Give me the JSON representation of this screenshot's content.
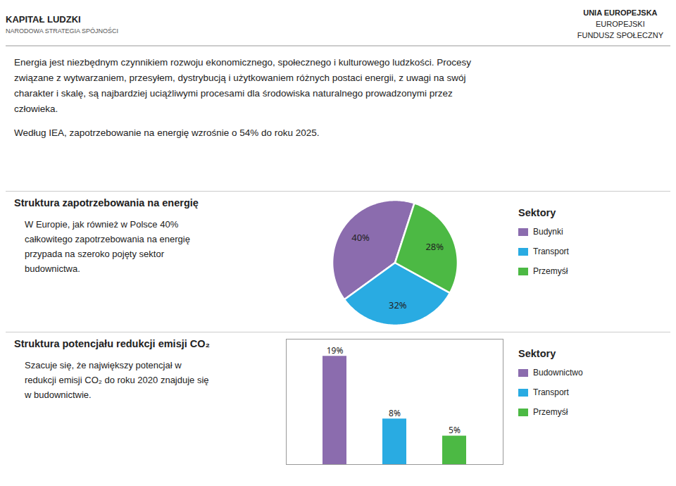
{
  "header": {
    "left": [
      "KAPITAŁ LUDZKI",
      "NARODOWA STRATEGIA SPÓJNOŚCI"
    ],
    "right": [
      "UNIA EUROPEJSKA",
      "EUROPEJSKI",
      "FUNDUSZ SPOŁECZNY"
    ]
  },
  "intro": [
    [
      "Energia jest niezbędnym czynnikiem rozwoju ekonomicznego, społecznego i kulturowego ludzkości. Procesy",
      "związane z wytwarzaniem, przesyłem, dystrybucją i użytkowaniem różnych  postaci energii, z uwagi na swój",
      "charakter i skalę, są najbardziej uciążliwymi procesami dla środowiska naturalnego prowadzonymi przez",
      "człowieka."
    ],
    [
      "Według IEA, zapotrzebowanie na energię wzrośnie o 54% do roku 2025."
    ]
  ],
  "chart_data": [
    {
      "type": "pie",
      "title": "Struktura zapotrzebowania na energię",
      "annotations": [
        "W Europie, jak również w Polsce 40%",
        "całkowitego zapotrzebowania na energię",
        "przypada na szeroko pojęty sektor",
        "budownictwa."
      ],
      "legend_title": "Sektory",
      "categories": [
        "Budynki",
        "Transport",
        "Przemyśł"
      ],
      "values": [
        40,
        32,
        28
      ],
      "value_labels": [
        "40%",
        "32%",
        "28%"
      ],
      "colors": [
        "#8B6CAE",
        "#29ABE2",
        "#4CB944"
      ],
      "data_labels": true,
      "legend": "right"
    },
    {
      "type": "bar",
      "title": "Struktura potencjału redukcji emisji CO₂",
      "annotations": [
        "Szacuje się, że największy potencjał w",
        "redukcji emisji CO₂ do roku 2020 znajduje się",
        "w budownictwie."
      ],
      "legend_title": "Sektory",
      "categories": [
        "Budownictwo",
        "Transport",
        "Przemyśł"
      ],
      "values": [
        19,
        8,
        5
      ],
      "value_labels": [
        "19%",
        "8%",
        "5%"
      ],
      "colors": [
        "#8B6CAE",
        "#29ABE2",
        "#4CB944"
      ],
      "ylim": [
        0,
        22
      ],
      "yticks": [],
      "tick_labels": false,
      "data_labels": true,
      "legend": "right"
    }
  ]
}
